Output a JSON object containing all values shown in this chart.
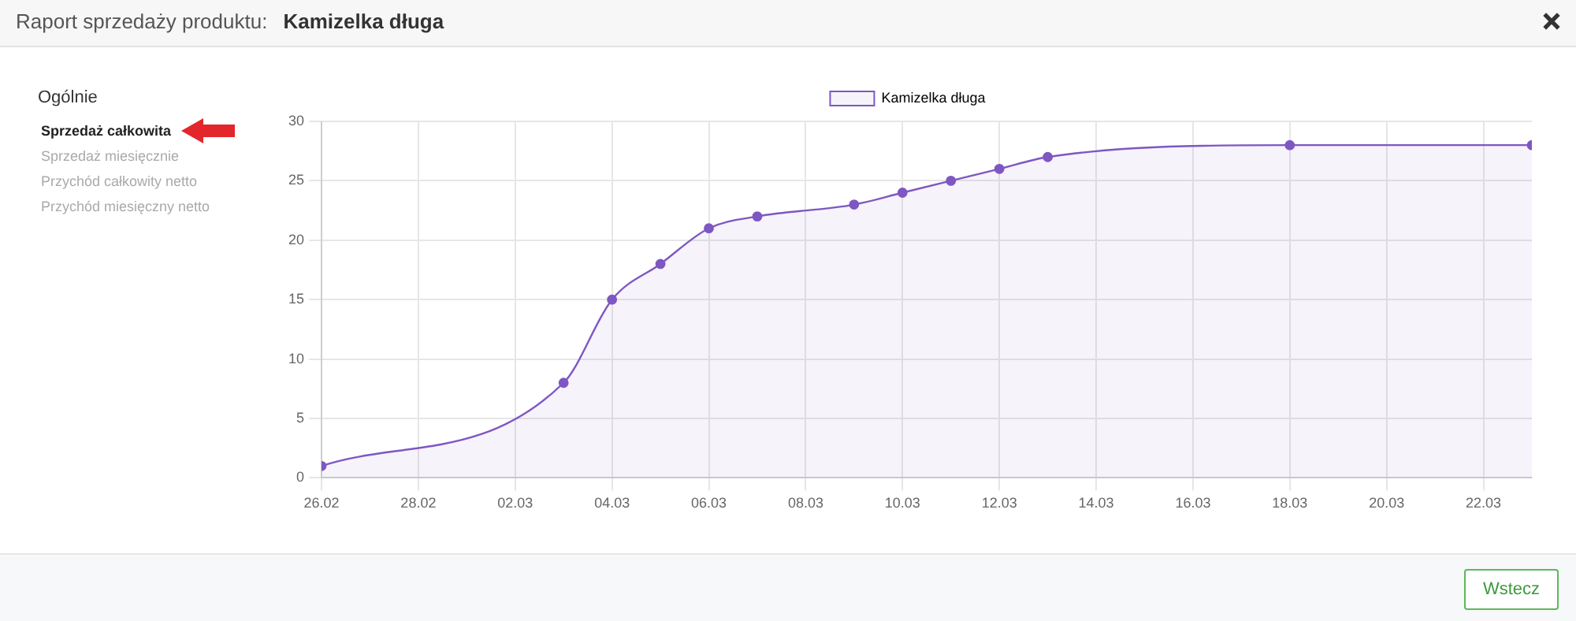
{
  "chart_data": {
    "type": "area",
    "title": "Raport sprzedaży produktu:",
    "subtitle": "Kamizelka długa",
    "annotations": [
      "Ogólnie",
      "Sprzedaż całkowita",
      "Sprzedaż miesięcznie",
      "Przychód całkowity netto",
      "Przychód miesięczny netto",
      "Wstecz"
    ],
    "x": [
      "--02-26",
      "--03-03",
      "--03-04",
      "--03-05",
      "--03-06",
      "--03-07",
      "--03-09",
      "--03-10",
      "--03-11",
      "--03-12",
      "--03-13",
      "--03-18",
      "--03-23"
    ],
    "series": [
      {
        "name": "Kamizelka długa",
        "color": "#7e57c2",
        "values": [
          1,
          8,
          15,
          18,
          21,
          22,
          23,
          24,
          25,
          26,
          27,
          28,
          28
        ]
      }
    ],
    "xlim": [
      "--02-26",
      "--03-23"
    ],
    "xticks": [
      {
        "value": "--02-26",
        "label": "26.02"
      },
      {
        "value": "--02-28",
        "label": "28.02"
      },
      {
        "value": "--03-02",
        "label": "02.03"
      },
      {
        "value": "--03-04",
        "label": "04.03"
      },
      {
        "value": "--03-06",
        "label": "06.03"
      },
      {
        "value": "--03-08",
        "label": "08.03"
      },
      {
        "value": "--03-10",
        "label": "10.03"
      },
      {
        "value": "--03-12",
        "label": "12.03"
      },
      {
        "value": "--03-14",
        "label": "14.03"
      },
      {
        "value": "--03-16",
        "label": "16.03"
      },
      {
        "value": "--03-18",
        "label": "18.03"
      },
      {
        "value": "--03-20",
        "label": "20.03"
      },
      {
        "value": "--03-22",
        "label": "22.03"
      }
    ],
    "ylim": [
      0,
      30
    ],
    "yticks": [
      0,
      5,
      10,
      15,
      20,
      25,
      30
    ],
    "grid": true,
    "legend": "top",
    "marker": "circle",
    "line_style": "solid"
  }
}
